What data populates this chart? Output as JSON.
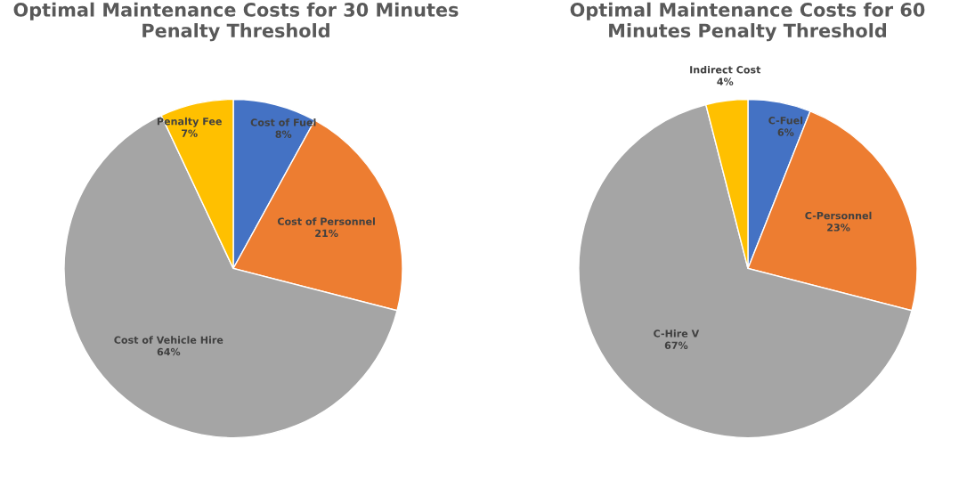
{
  "chart_data": [
    {
      "type": "pie",
      "title": "Optimal Maintenance Costs for 30 Minutes Penalty Threshold",
      "categories": [
        "Cost of Fuel",
        "Cost of Personnel",
        "Cost of Vehicle Hire",
        "Penalty Fee"
      ],
      "values": [
        8,
        21,
        64,
        7
      ],
      "colors": [
        "#4472c4",
        "#ed7d31",
        "#a5a5a5",
        "#ffc000"
      ],
      "value_labels": [
        "8%",
        "21%",
        "64%",
        "7%"
      ]
    },
    {
      "type": "pie",
      "title": "Optimal Maintenance Costs for 60 Minutes Penalty Threshold",
      "categories": [
        "C-Fuel",
        "C-Personnel",
        "C-Hire V",
        "Indirect Cost"
      ],
      "values": [
        6,
        23,
        67,
        4
      ],
      "colors": [
        "#4472c4",
        "#ed7d31",
        "#a5a5a5",
        "#ffc000"
      ],
      "value_labels": [
        "6%",
        "23%",
        "67%",
        "4%"
      ]
    }
  ]
}
